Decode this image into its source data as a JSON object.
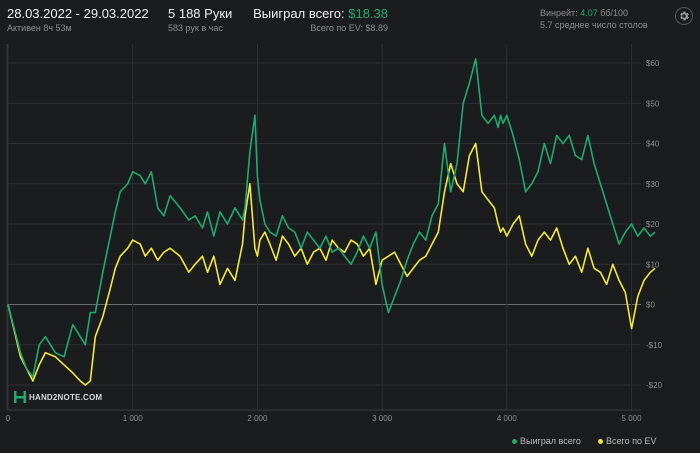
{
  "header": {
    "date_range": "28.03.2022 - 29.03.2022",
    "active": "Активен 8ч 53м",
    "hands": "5 188 Руки",
    "hands_per_hour": "583 рук в час",
    "won_total_label": "Выиграл всего:",
    "won_total_value": "$18.38",
    "ev_total": "Всего по EV: $8.89",
    "winrate_label": "Винрейт:",
    "winrate_value": "4.07",
    "winrate_suffix": "бб/100",
    "avg_tables": "5.7 среднее число столов"
  },
  "logo": {
    "text": "HAND2NOTE.COM"
  },
  "icons": {
    "settings": "gear-icon",
    "logo": "hand2note-logo-icon"
  },
  "colors": {
    "won": "#21a971",
    "ev": "#f2e93b",
    "grid": "#2e3033",
    "zero": "#6a6c70"
  },
  "chart_data": {
    "type": "line",
    "title": "",
    "xlabel": "",
    "ylabel": "",
    "xlim": [
      0,
      5188
    ],
    "ylim": [
      -20,
      60
    ],
    "x_ticks": [
      0,
      1000,
      2000,
      3000,
      4000,
      5000
    ],
    "x_tick_labels": [
      "0",
      "1 000",
      "2 000",
      "3 000",
      "4 000",
      "5 000"
    ],
    "y_ticks": [
      -20,
      -10,
      0,
      10,
      20,
      30,
      40,
      50,
      60
    ],
    "y_tick_labels": [
      "-$20",
      "-$10",
      "$0",
      "$10",
      "$20",
      "$30",
      "$40",
      "$50",
      "$60"
    ],
    "grid": true,
    "legend_position": "bottom-right",
    "series": [
      {
        "name": "Выиграл всего",
        "color": "#21a971",
        "x": [
          0,
          100,
          150,
          200,
          250,
          300,
          380,
          450,
          520,
          580,
          620,
          660,
          700,
          760,
          820,
          860,
          900,
          960,
          1000,
          1060,
          1100,
          1150,
          1200,
          1250,
          1300,
          1380,
          1450,
          1500,
          1560,
          1600,
          1650,
          1700,
          1760,
          1820,
          1880,
          1900,
          1940,
          1980,
          2000,
          2020,
          2060,
          2100,
          2150,
          2200,
          2250,
          2300,
          2350,
          2400,
          2450,
          2500,
          2550,
          2600,
          2650,
          2700,
          2750,
          2800,
          2850,
          2900,
          2950,
          3000,
          3050,
          3100,
          3150,
          3200,
          3250,
          3300,
          3350,
          3400,
          3450,
          3500,
          3550,
          3600,
          3650,
          3700,
          3750,
          3800,
          3850,
          3900,
          3930,
          3950,
          3970,
          4000,
          4050,
          4100,
          4150,
          4200,
          4250,
          4300,
          4350,
          4400,
          4450,
          4500,
          4550,
          4600,
          4650,
          4700,
          4750,
          4800,
          4850,
          4900,
          4950,
          5000,
          5050,
          5100,
          5150,
          5188
        ],
        "values": [
          0,
          -12,
          -16,
          -18,
          -10,
          -8,
          -12,
          -13,
          -5,
          -8,
          -10,
          -2,
          -2,
          8,
          17,
          23,
          28,
          30,
          33,
          32,
          30,
          33,
          24,
          22,
          27,
          24,
          21,
          22,
          19,
          23,
          17,
          23,
          20,
          24,
          21,
          24,
          38,
          47,
          32,
          26,
          20,
          18,
          17,
          22,
          19,
          18,
          14,
          18,
          16,
          14,
          17,
          13,
          14,
          12,
          10,
          13,
          17,
          14,
          18,
          5,
          -2,
          2,
          6,
          11,
          15,
          18,
          16,
          22,
          25,
          40,
          28,
          35,
          50,
          55,
          61,
          47,
          45,
          47,
          44,
          47,
          45,
          47,
          42,
          36,
          28,
          30,
          33,
          40,
          35,
          42,
          40,
          42,
          37,
          36,
          42,
          35,
          30,
          25,
          20,
          15,
          18,
          20,
          17,
          19,
          17,
          18
        ]
      },
      {
        "name": "Всего по EV",
        "color": "#f2e93b",
        "x": [
          0,
          100,
          150,
          200,
          250,
          300,
          380,
          450,
          520,
          580,
          620,
          660,
          700,
          760,
          820,
          860,
          900,
          960,
          1000,
          1060,
          1100,
          1150,
          1200,
          1250,
          1300,
          1380,
          1450,
          1500,
          1560,
          1600,
          1650,
          1700,
          1760,
          1820,
          1880,
          1900,
          1940,
          1980,
          2000,
          2020,
          2060,
          2100,
          2150,
          2200,
          2250,
          2300,
          2350,
          2400,
          2450,
          2500,
          2550,
          2600,
          2650,
          2700,
          2750,
          2800,
          2850,
          2900,
          2950,
          3000,
          3050,
          3100,
          3150,
          3200,
          3250,
          3300,
          3350,
          3400,
          3450,
          3500,
          3550,
          3600,
          3650,
          3700,
          3750,
          3800,
          3850,
          3900,
          3930,
          3950,
          3970,
          4000,
          4050,
          4100,
          4150,
          4200,
          4250,
          4300,
          4350,
          4400,
          4450,
          4500,
          4550,
          4600,
          4650,
          4700,
          4750,
          4800,
          4850,
          4900,
          4950,
          5000,
          5050,
          5100,
          5150,
          5188
        ],
        "values": [
          0,
          -13,
          -16,
          -19,
          -15,
          -12,
          -13,
          -15,
          -17,
          -19,
          -20,
          -19,
          -8,
          -3,
          4,
          9,
          12,
          14,
          16,
          15,
          12,
          14,
          11,
          13,
          14,
          12,
          8,
          10,
          12,
          8,
          12,
          5,
          9,
          6,
          15,
          22,
          30,
          14,
          12,
          16,
          18,
          15,
          11,
          17,
          15,
          12,
          14,
          10,
          13,
          14,
          11,
          16,
          14,
          13,
          16,
          15,
          12,
          14,
          5,
          11,
          12,
          13,
          10,
          7,
          9,
          11,
          12,
          15,
          18,
          28,
          35,
          30,
          28,
          37,
          40,
          28,
          26,
          24,
          20,
          18,
          19,
          17,
          20,
          22,
          15,
          12,
          16,
          18,
          16,
          19,
          14,
          10,
          12,
          8,
          14,
          9,
          8,
          5,
          10,
          6,
          3,
          -6,
          2,
          6,
          8,
          9
        ]
      }
    ]
  }
}
